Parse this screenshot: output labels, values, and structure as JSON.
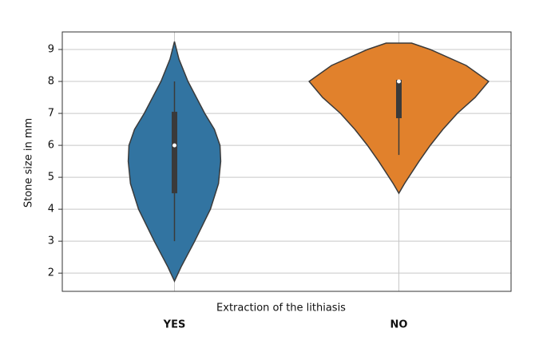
{
  "chart_data": {
    "type": "violin",
    "ylabel": "Stone size in mm",
    "xlabel": "Extraction of the lithiasis",
    "categories": [
      "YES",
      "NO"
    ],
    "ylim": [
      1.43,
      9.55
    ],
    "yticks": [
      2,
      3,
      4,
      5,
      6,
      7,
      8,
      9
    ],
    "grid": true,
    "violins": [
      {
        "color": "#3274a1",
        "y": [
          1.75,
          2.2,
          3,
          4,
          4.8,
          5.5,
          6,
          6.5,
          7,
          8,
          8.7,
          9.25
        ],
        "widths": [
          0,
          0.03,
          0.09,
          0.16,
          0.196,
          0.206,
          0.203,
          0.178,
          0.135,
          0.06,
          0.02,
          0
        ],
        "whisker_low": 3,
        "q1": 4.5,
        "median": 6,
        "q3": 7.05,
        "whisker_high": 8
      },
      {
        "color": "#e1812c",
        "y": [
          4.5,
          4.8,
          5.5,
          6,
          6.5,
          7,
          7.5,
          8,
          8.5,
          9,
          9.2
        ],
        "widths": [
          0,
          0.025,
          0.09,
          0.14,
          0.196,
          0.26,
          0.34,
          0.4,
          0.3,
          0.14,
          0.057
        ],
        "whisker_low": 5.7,
        "q1": 6.85,
        "median": 8,
        "q3": 8.05,
        "whisker_high": 8.05
      }
    ]
  }
}
